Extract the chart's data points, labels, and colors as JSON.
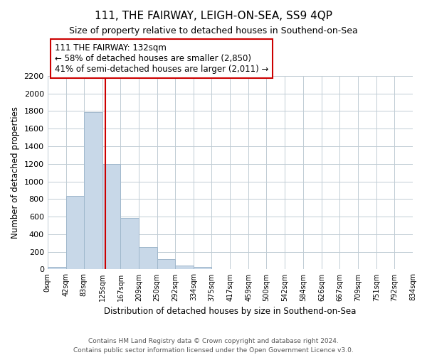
{
  "title": "111, THE FAIRWAY, LEIGH-ON-SEA, SS9 4QP",
  "subtitle": "Size of property relative to detached houses in Southend-on-Sea",
  "xlabel": "Distribution of detached houses by size in Southend-on-Sea",
  "ylabel": "Number of detached properties",
  "bar_edges": [
    0,
    42,
    83,
    125,
    167,
    209,
    250,
    292,
    334,
    375,
    417,
    459,
    500,
    542,
    584,
    626,
    667,
    709,
    751,
    792,
    834
  ],
  "bar_heights": [
    25,
    835,
    1790,
    1200,
    585,
    255,
    115,
    45,
    25,
    0,
    0,
    0,
    0,
    0,
    0,
    0,
    0,
    0,
    0,
    0
  ],
  "bar_color": "#c8d8e8",
  "bar_edge_color": "#a0b8cc",
  "property_line_x": 132,
  "property_line_color": "#cc0000",
  "annotation_line1": "111 THE FAIRWAY: 132sqm",
  "annotation_line2": "← 58% of detached houses are smaller (2,850)",
  "annotation_line3": "41% of semi-detached houses are larger (2,011) →",
  "annotation_box_color": "#ffffff",
  "annotation_box_edge": "#cc0000",
  "ylim": [
    0,
    2200
  ],
  "yticks": [
    0,
    200,
    400,
    600,
    800,
    1000,
    1200,
    1400,
    1600,
    1800,
    2000,
    2200
  ],
  "tick_labels": [
    "0sqm",
    "42sqm",
    "83sqm",
    "125sqm",
    "167sqm",
    "209sqm",
    "250sqm",
    "292sqm",
    "334sqm",
    "375sqm",
    "417sqm",
    "459sqm",
    "500sqm",
    "542sqm",
    "584sqm",
    "626sqm",
    "667sqm",
    "709sqm",
    "751sqm",
    "792sqm",
    "834sqm"
  ],
  "footer_text": "Contains HM Land Registry data © Crown copyright and database right 2024.\nContains public sector information licensed under the Open Government Licence v3.0.",
  "background_color": "#ffffff",
  "grid_color": "#c0ccd4"
}
